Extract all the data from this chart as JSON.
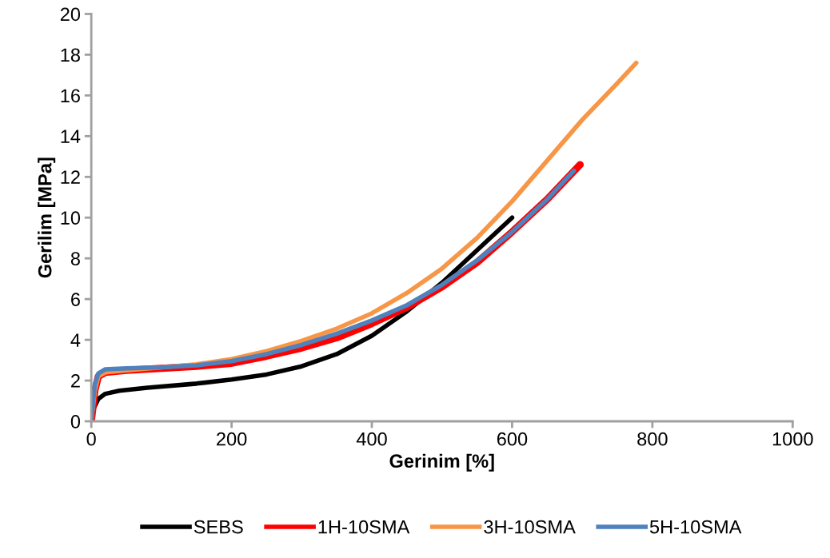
{
  "chart_data": {
    "type": "line",
    "xlabel": "Gerinim [%]",
    "ylabel": "Gerilim [MPa]",
    "xlim": [
      0,
      1000
    ],
    "xticks": [
      0,
      200,
      400,
      600,
      800,
      1000
    ],
    "ylim": [
      0,
      20
    ],
    "yticks": [
      0,
      2,
      4,
      6,
      8,
      10,
      12,
      14,
      16,
      18,
      20
    ],
    "grid": false,
    "legend": "bottom",
    "marker": "none",
    "line_style": "solid",
    "series": [
      {
        "name": "SEBS",
        "color": "#000000",
        "x": [
          0,
          3,
          10,
          20,
          40,
          80,
          150,
          200,
          250,
          300,
          350,
          400,
          450,
          500,
          550,
          600
        ],
        "values": [
          0,
          0.6,
          1.1,
          1.35,
          1.5,
          1.65,
          1.85,
          2.05,
          2.3,
          2.7,
          3.3,
          4.2,
          5.4,
          6.8,
          8.4,
          10.0
        ]
      },
      {
        "name": "1H-10SMA",
        "color": "#ff0000",
        "x": [
          0,
          5,
          10,
          20,
          50,
          100,
          150,
          200,
          250,
          300,
          350,
          400,
          450,
          500,
          550,
          600,
          650,
          697
        ],
        "values": [
          0,
          1.5,
          2.2,
          2.4,
          2.5,
          2.6,
          2.7,
          2.85,
          3.2,
          3.6,
          4.1,
          4.8,
          5.6,
          6.6,
          7.8,
          9.3,
          10.9,
          12.6
        ]
      },
      {
        "name": "3H-10SMA",
        "color": "#f79646",
        "x": [
          0,
          5,
          10,
          20,
          50,
          100,
          150,
          200,
          250,
          300,
          350,
          400,
          450,
          500,
          550,
          600,
          650,
          700,
          750,
          777
        ],
        "values": [
          0,
          1.5,
          2.2,
          2.4,
          2.5,
          2.65,
          2.8,
          3.05,
          3.45,
          3.95,
          4.55,
          5.3,
          6.3,
          7.5,
          9.0,
          10.8,
          12.8,
          14.8,
          16.6,
          17.6
        ]
      },
      {
        "name": "5H-10SMA",
        "color": "#4f81bd",
        "x": [
          0,
          5,
          10,
          20,
          50,
          100,
          150,
          200,
          250,
          300,
          350,
          400,
          450,
          500,
          550,
          600,
          650,
          688
        ],
        "values": [
          0,
          1.8,
          2.35,
          2.55,
          2.6,
          2.65,
          2.75,
          2.95,
          3.3,
          3.75,
          4.3,
          4.95,
          5.7,
          6.7,
          7.9,
          9.3,
          10.9,
          12.3
        ]
      }
    ]
  }
}
